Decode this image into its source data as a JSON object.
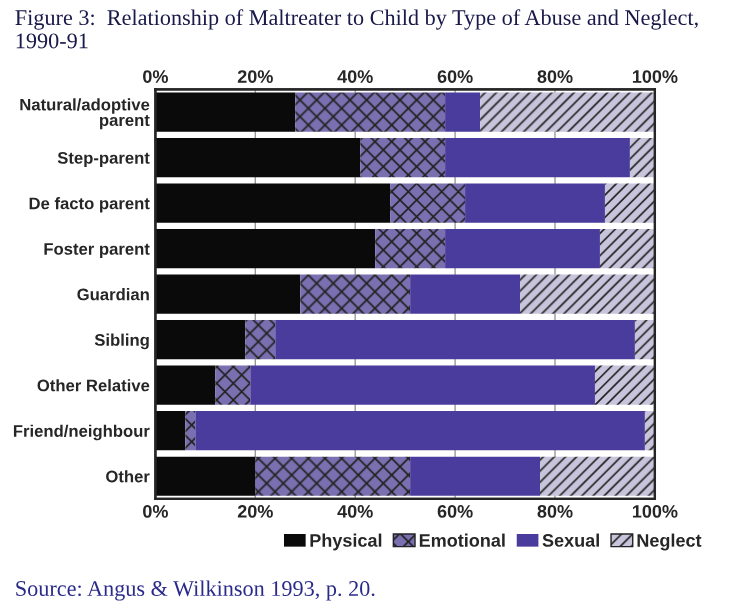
{
  "chart_data": {
    "type": "bar",
    "orientation": "horizontal",
    "stacked": true,
    "title": "Figure 3:  Relationship of Maltreater to Child by Type of Abuse and Neglect, 1990-91",
    "categories": [
      "Natural/adoptive parent",
      "Step-parent",
      "De facto parent",
      "Foster parent",
      "Guardian",
      "Sibling",
      "Other Relative",
      "Friend/neighbour",
      "Other"
    ],
    "series": [
      {
        "name": "Physical",
        "color": "#0a0a0a",
        "values": [
          28,
          41,
          47,
          44,
          29,
          18,
          12,
          6,
          20
        ]
      },
      {
        "name": "Emotional",
        "color": "#7a6fb0",
        "values": [
          30,
          17,
          15,
          14,
          22,
          6,
          7,
          2,
          31
        ]
      },
      {
        "name": "Sexual",
        "color": "#4a3c9c",
        "values": [
          7,
          37,
          28,
          31,
          22,
          72,
          69,
          90,
          26
        ]
      },
      {
        "name": "Neglect",
        "color": "#c8c4dc",
        "values": [
          35,
          5,
          10,
          11,
          27,
          4,
          12,
          2,
          23
        ]
      }
    ],
    "xlim": [
      0,
      100
    ],
    "xticks": [
      {
        "value": 0,
        "label": "0%"
      },
      {
        "value": 20,
        "label": "20%"
      },
      {
        "value": 40,
        "label": "40%"
      },
      {
        "value": 60,
        "label": "60%"
      },
      {
        "value": 80,
        "label": "80%"
      },
      {
        "value": 100,
        "label": "100%"
      }
    ],
    "x2lim": [
      0,
      100
    ],
    "x2ticks": [
      {
        "value": 0,
        "label": "0%"
      },
      {
        "value": 20,
        "label": "20%"
      },
      {
        "value": 40,
        "label": "40%"
      },
      {
        "value": 60,
        "label": "60%"
      },
      {
        "value": 80,
        "label": "80%"
      },
      {
        "value": 100,
        "label": "100%"
      }
    ],
    "grid": "x",
    "legend": "bottom",
    "annotations": [
      "Source: Angus & Wilkinson 1993, p. 20."
    ]
  }
}
